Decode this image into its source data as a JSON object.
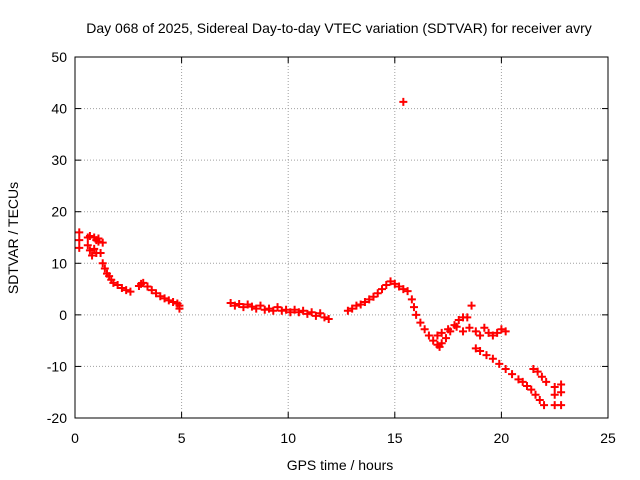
{
  "chart_data": {
    "type": "scatter",
    "title": "Day 068 of 2025, Sidereal Day-to-day VTEC variation (SDTVAR) for receiver avry",
    "xlabel": "GPS time / hours",
    "ylabel": "SDTVAR / TECUs",
    "xlim": [
      0,
      25
    ],
    "ylim": [
      -20,
      50
    ],
    "xticks": [
      0,
      5,
      10,
      15,
      20,
      25
    ],
    "yticks": [
      -20,
      -10,
      0,
      10,
      20,
      30,
      40,
      50
    ],
    "grid": true,
    "marker": "+",
    "color": "#ff0000",
    "series": [
      {
        "name": "SDTVAR",
        "x": [
          0.2,
          0.2,
          0.2,
          0.6,
          0.6,
          0.7,
          0.8,
          0.9,
          1.0,
          1.0,
          1.1,
          1.2,
          1.3,
          1.4,
          1.5,
          1.6,
          1.7,
          1.8,
          2.0,
          2.2,
          2.4,
          2.6,
          0.7,
          0.9,
          1.1,
          1.3,
          3.0,
          3.1,
          3.2,
          3.4,
          3.6,
          3.8,
          4.0,
          4.2,
          4.4,
          4.6,
          4.8,
          4.9,
          4.9,
          7.3,
          7.5,
          7.7,
          7.9,
          8.1,
          8.3,
          8.5,
          8.7,
          8.9,
          9.1,
          9.3,
          9.5,
          9.7,
          9.9,
          10.1,
          10.3,
          10.5,
          10.7,
          10.9,
          11.1,
          11.3,
          11.5,
          11.7,
          11.9,
          12.8,
          13.0,
          13.2,
          13.4,
          13.6,
          13.8,
          14.0,
          14.2,
          14.4,
          14.6,
          14.8,
          15.0,
          15.2,
          15.4,
          15.6,
          15.8,
          15.9,
          16.0,
          16.2,
          16.4,
          16.6,
          16.8,
          17.0,
          17.1,
          17.2,
          17.4,
          17.6,
          17.8,
          18.0,
          18.2,
          18.4,
          18.6,
          17.0,
          17.2,
          17.5,
          17.9,
          18.2,
          18.5,
          18.8,
          19.0,
          19.2,
          19.4,
          19.6,
          19.8,
          20.0,
          20.2,
          18.8,
          19.0,
          19.3,
          19.6,
          19.9,
          20.2,
          20.5,
          20.8,
          21.0,
          21.2,
          21.4,
          21.6,
          21.8,
          22.0,
          21.5,
          21.7,
          21.9,
          22.1,
          22.5,
          22.5,
          22.5,
          22.8,
          22.8,
          22.8,
          15.4
        ],
        "y": [
          16.0,
          14.5,
          13.0,
          15.0,
          13.5,
          12.5,
          11.5,
          12.8,
          14.5,
          12.0,
          14.2,
          12.0,
          10.0,
          9.0,
          8.0,
          7.5,
          6.8,
          6.2,
          5.8,
          5.2,
          4.8,
          4.5,
          15.3,
          15.0,
          14.8,
          14.0,
          5.6,
          6.0,
          6.2,
          5.5,
          4.8,
          4.2,
          3.6,
          3.2,
          2.8,
          2.5,
          2.2,
          1.8,
          1.2,
          2.3,
          1.8,
          2.1,
          1.5,
          2.0,
          1.6,
          1.2,
          1.8,
          1.0,
          1.2,
          0.8,
          1.5,
          0.8,
          1.0,
          0.5,
          1.0,
          0.5,
          0.8,
          0.2,
          0.5,
          -0.2,
          0.3,
          -0.5,
          -0.8,
          0.8,
          1.2,
          1.8,
          2.0,
          2.5,
          3.0,
          3.5,
          4.2,
          5.0,
          5.8,
          6.5,
          6.0,
          5.5,
          5.0,
          4.6,
          3.0,
          1.5,
          0.0,
          -1.5,
          -2.8,
          -4.0,
          -5.0,
          -5.8,
          -6.2,
          -5.5,
          -4.5,
          -3.2,
          -2.0,
          -1.0,
          -0.5,
          -0.5,
          1.8,
          -4.0,
          -3.5,
          -2.8,
          -2.3,
          -3.2,
          -2.5,
          -3.2,
          -4.0,
          -2.5,
          -3.5,
          -4.0,
          -3.5,
          -2.8,
          -3.2,
          -6.5,
          -7.0,
          -7.8,
          -8.5,
          -9.5,
          -10.5,
          -11.5,
          -12.5,
          -13.0,
          -13.8,
          -14.5,
          -15.5,
          -16.5,
          -17.5,
          -10.5,
          -11.0,
          -12.0,
          -13.0,
          -14.0,
          -15.5,
          -17.5,
          -13.5,
          -15.0,
          -17.5,
          41.3
        ]
      }
    ]
  }
}
